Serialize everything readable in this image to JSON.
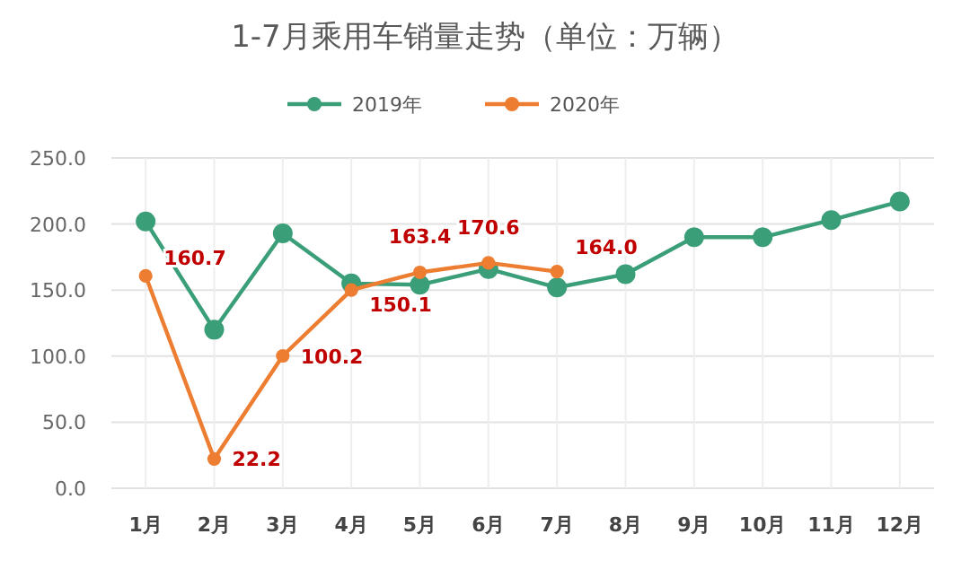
{
  "chart_data": {
    "type": "line",
    "title": "1-7月乘用车销量走势（单位：万辆）",
    "categories": [
      "1月",
      "2月",
      "3月",
      "4月",
      "5月",
      "6月",
      "7月",
      "8月",
      "9月",
      "10月",
      "11月",
      "12月"
    ],
    "series": [
      {
        "name": "2019年",
        "color": "#3a9e78",
        "values": [
          202,
          120,
          193,
          155,
          154,
          166,
          152,
          162,
          190,
          190,
          203,
          217
        ]
      },
      {
        "name": "2020年",
        "color": "#ed7d31",
        "values": [
          160.7,
          22.2,
          100.2,
          150.1,
          163.4,
          170.6,
          164.0,
          null,
          null,
          null,
          null,
          null
        ],
        "value_labels": [
          "160.7",
          "22.2",
          "100.2",
          "150.1",
          "163.4",
          "170.6",
          "164.0",
          null,
          null,
          null,
          null,
          null
        ]
      }
    ],
    "ylim": [
      0,
      250
    ],
    "yticks": [
      {
        "value": 0,
        "label": "0.0"
      },
      {
        "value": 50,
        "label": "50.0"
      },
      {
        "value": 100,
        "label": "100.0"
      },
      {
        "value": 150,
        "label": "150.0"
      },
      {
        "value": 200,
        "label": "200.0"
      },
      {
        "value": 250,
        "label": "250.0"
      }
    ],
    "grid": true,
    "legend": "top",
    "marker": "circle",
    "line_style": "solid"
  }
}
